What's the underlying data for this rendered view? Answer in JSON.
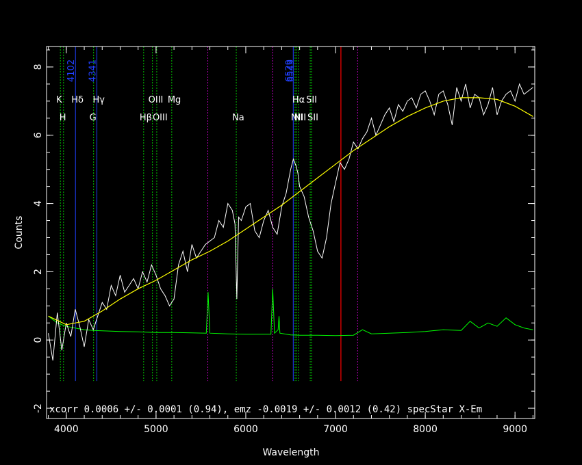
{
  "chart_data": {
    "type": "line",
    "xlabel": "Wavelength",
    "ylabel": "Counts",
    "xlim": [
      3780,
      9220
    ],
    "ylim": [
      -2.3,
      8.6
    ],
    "x_ticks": [
      4000,
      5000,
      6000,
      7000,
      8000,
      9000
    ],
    "y_ticks": [
      -2,
      0,
      2,
      4,
      6,
      8
    ],
    "grid": false,
    "background": "#000000",
    "colors": {
      "axes": "#ffffff",
      "spectrum": "#ffffff",
      "model": "#ffff00",
      "error": "#00ff00",
      "line_green": "#00c000",
      "line_magenta": "#c000c0",
      "line_blue": "#2040ff",
      "line_red": "#ff0000"
    },
    "footer": "xcorr  0.0006 +/- 0.0001 (0.94), emz -0.0019 +/- 0.0012 (0.42) specStar X-Em",
    "series": [
      {
        "role": "spectrum",
        "x": [
          3800,
          3850,
          3900,
          3950,
          4000,
          4050,
          4100,
          4150,
          4200,
          4250,
          4300,
          4350,
          4400,
          4450,
          4500,
          4550,
          4600,
          4650,
          4700,
          4750,
          4800,
          4850,
          4900,
          4950,
          5000,
          5050,
          5100,
          5150,
          5200,
          5250,
          5300,
          5350,
          5400,
          5450,
          5500,
          5550,
          5600,
          5650,
          5700,
          5750,
          5800,
          5850,
          5880,
          5900,
          5920,
          5950,
          6000,
          6050,
          6100,
          6150,
          6200,
          6250,
          6300,
          6350,
          6400,
          6450,
          6500,
          6530,
          6560,
          6580,
          6600,
          6650,
          6700,
          6750,
          6800,
          6850,
          6900,
          6950,
          7000,
          7050,
          7100,
          7150,
          7200,
          7250,
          7300,
          7350,
          7400,
          7450,
          7500,
          7550,
          7600,
          7650,
          7700,
          7750,
          7800,
          7850,
          7900,
          7950,
          8000,
          8050,
          8100,
          8150,
          8200,
          8250,
          8300,
          8350,
          8400,
          8450,
          8500,
          8550,
          8600,
          8650,
          8700,
          8750,
          8800,
          8850,
          8900,
          8950,
          9000,
          9050,
          9100,
          9150,
          9200
        ],
        "y": [
          0.2,
          -0.6,
          0.8,
          -0.3,
          0.5,
          0.1,
          0.9,
          0.4,
          -0.2,
          0.6,
          0.3,
          0.7,
          1.1,
          0.9,
          1.6,
          1.3,
          1.9,
          1.4,
          1.6,
          1.8,
          1.5,
          2.0,
          1.7,
          2.2,
          1.9,
          1.5,
          1.3,
          1.0,
          1.2,
          2.2,
          2.6,
          2.0,
          2.8,
          2.4,
          2.6,
          2.8,
          2.9,
          3.0,
          3.5,
          3.3,
          4.0,
          3.8,
          3.4,
          1.2,
          3.6,
          3.5,
          3.9,
          4.0,
          3.2,
          3.0,
          3.5,
          3.8,
          3.3,
          3.1,
          3.9,
          4.3,
          5.0,
          5.3,
          5.1,
          4.9,
          4.5,
          4.2,
          3.6,
          3.2,
          2.6,
          2.4,
          3.0,
          4.0,
          4.6,
          5.2,
          5.0,
          5.3,
          5.8,
          5.6,
          5.9,
          6.1,
          6.5,
          6.0,
          6.3,
          6.6,
          6.8,
          6.4,
          6.9,
          6.7,
          7.0,
          7.1,
          6.8,
          7.2,
          7.3,
          7.0,
          6.6,
          7.2,
          7.3,
          6.9,
          6.3,
          7.4,
          7.0,
          7.5,
          6.8,
          7.2,
          7.1,
          6.6,
          6.9,
          7.4,
          6.6,
          7.0,
          7.2,
          7.3,
          7.0,
          7.5,
          7.2,
          7.3,
          7.4
        ]
      },
      {
        "role": "model",
        "x": [
          3800,
          4000,
          4200,
          4400,
          4600,
          4800,
          5000,
          5200,
          5400,
          5600,
          5800,
          6000,
          6200,
          6400,
          6600,
          6800,
          7000,
          7200,
          7400,
          7600,
          7800,
          8000,
          8200,
          8400,
          8600,
          8800,
          9000,
          9200
        ],
        "y": [
          0.7,
          0.45,
          0.55,
          0.85,
          1.2,
          1.5,
          1.75,
          2.05,
          2.35,
          2.6,
          2.9,
          3.25,
          3.6,
          3.95,
          4.35,
          4.75,
          5.15,
          5.55,
          5.9,
          6.25,
          6.55,
          6.8,
          7.0,
          7.1,
          7.1,
          7.05,
          6.85,
          6.55
        ]
      },
      {
        "role": "error",
        "x": [
          3800,
          3900,
          4000,
          4100,
          4200,
          4300,
          4400,
          4600,
          4800,
          5000,
          5200,
          5400,
          5560,
          5580,
          5600,
          5800,
          6000,
          6200,
          6280,
          6300,
          6320,
          6360,
          6370,
          6380,
          6500,
          6600,
          6800,
          7000,
          7200,
          7300,
          7400,
          7600,
          7800,
          8000,
          8200,
          8400,
          8500,
          8600,
          8700,
          8800,
          8900,
          9000,
          9100,
          9200
        ],
        "y": [
          0.7,
          0.5,
          0.4,
          0.35,
          0.3,
          0.28,
          0.27,
          0.25,
          0.24,
          0.22,
          0.22,
          0.21,
          0.2,
          1.4,
          0.2,
          0.18,
          0.17,
          0.17,
          0.17,
          1.5,
          0.2,
          0.3,
          0.7,
          0.2,
          0.15,
          0.14,
          0.14,
          0.13,
          0.14,
          0.3,
          0.18,
          0.2,
          0.22,
          0.25,
          0.3,
          0.28,
          0.55,
          0.35,
          0.5,
          0.4,
          0.65,
          0.45,
          0.35,
          0.3
        ]
      }
    ],
    "lines": [
      {
        "x": 3934,
        "color": "line_green",
        "label": "K",
        "row": 1
      },
      {
        "x": 3969,
        "color": "line_green",
        "label": "H",
        "row": 2
      },
      {
        "x": 4102,
        "color": "line_blue",
        "label": "Hδ",
        "row": 1
      },
      {
        "x": 4304,
        "color": "line_green",
        "label": "G",
        "row": 2
      },
      {
        "x": 4341,
        "color": "line_blue",
        "label": "Hγ",
        "row": 1
      },
      {
        "x": 4862,
        "color": "line_green",
        "label": "Hβ",
        "row": 2
      },
      {
        "x": 4960,
        "color": "line_green",
        "label": "OIII",
        "row": 1
      },
      {
        "x": 5008,
        "color": "line_green",
        "label": "OIII",
        "row": 2
      },
      {
        "x": 5175,
        "color": "line_green",
        "label": "Mg",
        "row": 1
      },
      {
        "x": 5577,
        "color": "line_magenta",
        "label": "",
        "row": 0
      },
      {
        "x": 5894,
        "color": "line_green",
        "label": "Na",
        "row": 2
      },
      {
        "x": 6300,
        "color": "line_magenta",
        "label": "",
        "row": 0
      },
      {
        "x": 6529,
        "color": "line_blue",
        "label": "",
        "row": 0
      },
      {
        "x": 6549,
        "color": "line_green",
        "label": "NII",
        "row": 2
      },
      {
        "x": 6564,
        "color": "line_green",
        "label": "Hα",
        "row": 1
      },
      {
        "x": 6585,
        "color": "line_green",
        "label": "NII",
        "row": 2
      },
      {
        "x": 6718,
        "color": "line_green",
        "label": "SII",
        "row": 1
      },
      {
        "x": 6733,
        "color": "line_green",
        "label": "SII",
        "row": 2
      },
      {
        "x": 7060,
        "color": "line_red",
        "label": "",
        "row": 0
      },
      {
        "x": 7246,
        "color": "line_magenta",
        "label": "",
        "row": 0
      }
    ],
    "rotated_labels": [
      {
        "x": 4102,
        "text": "4102"
      },
      {
        "x": 4341,
        "text": "4341"
      },
      {
        "x": 6529,
        "text": "6529"
      },
      {
        "x": 6549,
        "text": "6549"
      }
    ]
  }
}
